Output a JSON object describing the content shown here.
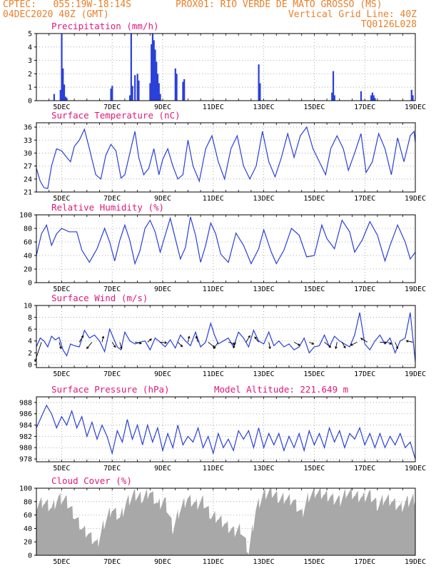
{
  "header": {
    "left1": "CPTEC:   055:19W-18:14S",
    "station": "PROX01: RIO VERDE DE MATO GROSSO (MS)",
    "left2": "04DEC2020 40Z (GMT)",
    "right2": "Vertical Grid Line: 40Z",
    "right3": "TQ0126L028"
  },
  "colors": {
    "header": "#e8802c",
    "title": "#e0187a",
    "line": "#2a40d8",
    "cloud": "#a8a8a8"
  },
  "chart_data": [
    {
      "type": "bar",
      "title": "Precipitation (mm/h)",
      "ylim": [
        0,
        5
      ],
      "yticks": [
        0,
        1,
        2,
        3,
        4,
        5
      ],
      "xticks": [
        "5DEC",
        "7DEC",
        "9DEC",
        "11DEC",
        "13DEC",
        "15DEC",
        "17DEC",
        "19DEC"
      ],
      "x": [
        4.7,
        4.95,
        5.0,
        5.05,
        5.1,
        5.15,
        5.2,
        6.95,
        7.0,
        7.7,
        7.75,
        7.8,
        7.9,
        8.0,
        8.05,
        8.5,
        8.55,
        8.6,
        8.65,
        8.7,
        8.75,
        8.8,
        8.85,
        8.9,
        9.5,
        9.55,
        9.8,
        9.85,
        12.8,
        12.85,
        15.7,
        15.75,
        15.8,
        16.85,
        17.25,
        17.3,
        17.35,
        17.4,
        18.85,
        18.9
      ],
      "values": [
        0.5,
        0.8,
        5.0,
        2.4,
        1.2,
        0.3,
        0.2,
        0.9,
        1.1,
        0.4,
        5.0,
        1.1,
        1.9,
        2.0,
        1.5,
        1.3,
        4.2,
        5.0,
        4.5,
        3.8,
        2.9,
        2.0,
        1.3,
        0.5,
        2.4,
        2.0,
        1.4,
        1.6,
        2.7,
        1.3,
        0.6,
        2.2,
        0.4,
        0.7,
        0.4,
        0.6,
        0.4,
        0.2,
        0.8,
        0.4
      ]
    },
    {
      "type": "line",
      "title": "Surface Temperature (nC)",
      "ylim": [
        21,
        37
      ],
      "yticks": [
        21,
        24,
        27,
        30,
        33,
        36
      ],
      "xticks": [
        "5DEC",
        "7DEC",
        "9DEC",
        "11DEC",
        "13DEC",
        "15DEC",
        "17DEC",
        "19DEC"
      ],
      "x": [
        4.0,
        4.15,
        4.3,
        4.45,
        4.6,
        4.8,
        5.0,
        5.2,
        5.35,
        5.5,
        5.7,
        5.9,
        6.1,
        6.35,
        6.55,
        6.75,
        6.95,
        7.15,
        7.35,
        7.5,
        7.7,
        7.9,
        8.05,
        8.25,
        8.45,
        8.65,
        8.85,
        9.0,
        9.2,
        9.4,
        9.6,
        9.8,
        10.0,
        10.2,
        10.45,
        10.7,
        10.95,
        11.2,
        11.45,
        11.7,
        11.95,
        12.2,
        12.45,
        12.7,
        12.95,
        13.2,
        13.45,
        13.7,
        13.95,
        14.2,
        14.45,
        14.7,
        14.95,
        15.2,
        15.45,
        15.65,
        15.9,
        16.15,
        16.35,
        16.6,
        16.85,
        17.05,
        17.3,
        17.55,
        17.8,
        18.05,
        18.3,
        18.55,
        18.8,
        18.95,
        19.0
      ],
      "values": [
        26.5,
        23.5,
        22.0,
        21.8,
        27.0,
        31.0,
        30.5,
        29.0,
        28.0,
        31.5,
        33.0,
        35.5,
        31.0,
        25.0,
        24.0,
        29.5,
        32.0,
        30.5,
        24.2,
        25.0,
        30.0,
        35.0,
        29.0,
        25.0,
        26.5,
        31.0,
        25.0,
        28.5,
        31.0,
        27.0,
        24.0,
        25.0,
        33.0,
        27.0,
        23.5,
        31.0,
        34.0,
        28.0,
        24.0,
        31.0,
        34.0,
        27.0,
        24.0,
        27.0,
        35.0,
        28.0,
        24.5,
        29.0,
        34.5,
        29.0,
        34.0,
        36.0,
        31.0,
        28.0,
        25.0,
        31.0,
        34.0,
        31.0,
        26.0,
        30.0,
        34.5,
        25.5,
        28.0,
        34.5,
        31.0,
        25.0,
        33.5,
        28.0,
        34.0,
        35.0,
        32.5
      ]
    },
    {
      "type": "line",
      "title": "Relative Humidity (%)",
      "ylim": [
        0,
        100
      ],
      "yticks": [
        0,
        20,
        40,
        60,
        80,
        100
      ],
      "xticks": [
        "5DEC",
        "7DEC",
        "9DEC",
        "11DEC",
        "13DEC",
        "15DEC",
        "17DEC",
        "19DEC"
      ],
      "x": [
        4.0,
        4.2,
        4.4,
        4.6,
        4.8,
        5.0,
        5.3,
        5.6,
        5.8,
        6.1,
        6.4,
        6.7,
        6.9,
        7.1,
        7.3,
        7.5,
        7.7,
        7.9,
        8.1,
        8.3,
        8.5,
        8.7,
        8.9,
        9.1,
        9.3,
        9.5,
        9.7,
        9.9,
        10.1,
        10.3,
        10.5,
        10.7,
        10.9,
        11.1,
        11.3,
        11.6,
        11.9,
        12.2,
        12.5,
        12.8,
        13.0,
        13.3,
        13.5,
        13.8,
        14.1,
        14.4,
        14.7,
        15.0,
        15.3,
        15.5,
        15.8,
        16.1,
        16.4,
        16.6,
        16.9,
        17.2,
        17.5,
        17.8,
        18.0,
        18.3,
        18.6,
        18.8,
        19.0
      ],
      "values": [
        40,
        72,
        85,
        55,
        72,
        80,
        75,
        75,
        48,
        30,
        50,
        80,
        60,
        32,
        62,
        85,
        62,
        28,
        47,
        80,
        92,
        75,
        45,
        70,
        95,
        65,
        35,
        52,
        97,
        70,
        30,
        55,
        88,
        72,
        42,
        30,
        73,
        55,
        28,
        50,
        78,
        45,
        28,
        48,
        80,
        70,
        38,
        40,
        85,
        65,
        50,
        92,
        75,
        45,
        63,
        90,
        70,
        32,
        55,
        85,
        60,
        35,
        45
      ]
    },
    {
      "type": "line",
      "title": "Surface Wind (m/s)",
      "ylim": [
        -0.5,
        10
      ],
      "yticks": [
        0,
        2,
        4,
        6,
        8,
        10
      ],
      "xticks": [
        "5DEC",
        "7DEC",
        "9DEC",
        "11DEC",
        "13DEC",
        "15DEC",
        "17DEC",
        "19DEC"
      ],
      "x": [
        4.0,
        4.15,
        4.3,
        4.45,
        4.6,
        4.75,
        4.9,
        5.05,
        5.2,
        5.35,
        5.5,
        5.7,
        5.9,
        6.1,
        6.3,
        6.5,
        6.7,
        6.9,
        7.05,
        7.2,
        7.35,
        7.5,
        7.7,
        7.9,
        8.1,
        8.3,
        8.5,
        8.7,
        8.9,
        9.1,
        9.3,
        9.5,
        9.7,
        9.9,
        10.1,
        10.3,
        10.5,
        10.7,
        10.9,
        11.05,
        11.2,
        11.4,
        11.6,
        11.8,
        12.0,
        12.2,
        12.4,
        12.6,
        12.8,
        13.0,
        13.2,
        13.4,
        13.6,
        13.8,
        14.0,
        14.2,
        14.4,
        14.6,
        14.8,
        15.0,
        15.2,
        15.4,
        15.6,
        15.8,
        16.0,
        16.2,
        16.4,
        16.6,
        16.8,
        17.0,
        17.2,
        17.4,
        17.6,
        17.8,
        18.0,
        18.2,
        18.4,
        18.6,
        18.8,
        19.0
      ],
      "values": [
        3.0,
        4.5,
        4.0,
        3.0,
        4.8,
        4.2,
        4.6,
        2.5,
        1.5,
        3.5,
        3.2,
        3.0,
        5.8,
        4.5,
        5.0,
        4.0,
        2.2,
        6.0,
        4.5,
        3.0,
        2.5,
        5.5,
        4.0,
        3.5,
        3.8,
        4.0,
        2.5,
        4.5,
        3.8,
        3.0,
        4.2,
        2.8,
        5.0,
        4.0,
        3.2,
        5.5,
        3.0,
        3.8,
        7.0,
        5.0,
        3.5,
        4.0,
        4.5,
        3.0,
        5.5,
        4.5,
        3.0,
        5.8,
        4.0,
        3.5,
        5.5,
        3.2,
        4.0,
        3.0,
        3.5,
        2.5,
        3.0,
        4.5,
        2.0,
        3.0,
        3.2,
        5.0,
        3.0,
        4.8,
        4.0,
        3.5,
        3.0,
        5.0,
        8.8,
        3.5,
        2.5,
        4.0,
        5.0,
        3.5,
        4.5,
        2.0,
        4.0,
        4.5,
        8.8,
        0.5
      ]
    },
    {
      "type": "line",
      "title": "Surface Pressure (hPa)",
      "annotation": "Model Altitude: 221.649 m",
      "ylim": [
        977.5,
        989
      ],
      "yticks": [
        978,
        980,
        982,
        984,
        986,
        988
      ],
      "xticks": [
        "5DEC",
        "7DEC",
        "9DEC",
        "11DEC",
        "13DEC",
        "15DEC",
        "17DEC",
        "19DEC"
      ],
      "x": [
        4.0,
        4.2,
        4.4,
        4.6,
        4.8,
        5.0,
        5.2,
        5.4,
        5.6,
        5.8,
        6.0,
        6.2,
        6.4,
        6.6,
        6.8,
        7.0,
        7.2,
        7.4,
        7.6,
        7.8,
        8.0,
        8.2,
        8.4,
        8.6,
        8.8,
        9.0,
        9.2,
        9.4,
        9.6,
        9.8,
        10.0,
        10.2,
        10.4,
        10.6,
        10.8,
        11.0,
        11.2,
        11.4,
        11.6,
        11.8,
        12.0,
        12.2,
        12.4,
        12.6,
        12.8,
        13.0,
        13.2,
        13.4,
        13.6,
        13.8,
        14.0,
        14.2,
        14.4,
        14.6,
        14.8,
        15.0,
        15.2,
        15.4,
        15.6,
        15.8,
        16.0,
        16.2,
        16.4,
        16.6,
        16.8,
        17.0,
        17.2,
        17.4,
        17.6,
        17.8,
        18.0,
        18.2,
        18.4,
        18.6,
        18.8,
        19.0
      ],
      "values": [
        983.5,
        985.5,
        987.5,
        986.0,
        983.5,
        985.5,
        984.0,
        986.5,
        983.5,
        985.5,
        982.0,
        984.5,
        981.5,
        984.0,
        982.0,
        979.0,
        983.0,
        981.0,
        985.0,
        981.5,
        984.0,
        980.5,
        984.0,
        981.0,
        983.5,
        979.5,
        982.5,
        980.0,
        984.0,
        980.5,
        982.0,
        981.0,
        983.5,
        980.0,
        982.0,
        979.0,
        982.5,
        980.0,
        981.5,
        979.5,
        983.0,
        981.5,
        983.0,
        980.0,
        983.5,
        980.0,
        982.5,
        980.5,
        982.5,
        979.5,
        982.0,
        980.0,
        982.5,
        979.5,
        983.0,
        980.5,
        982.5,
        980.0,
        983.5,
        981.0,
        983.0,
        980.0,
        982.5,
        981.5,
        983.5,
        980.5,
        982.5,
        980.0,
        982.5,
        980.0,
        982.0,
        980.5,
        982.5,
        980.0,
        981.0,
        978.0
      ]
    },
    {
      "type": "area",
      "title": "Cloud Cover (%)",
      "ylim": [
        0,
        100
      ],
      "yticks": [
        0,
        20,
        40,
        60,
        80,
        100
      ],
      "xticks": [
        "5DEC",
        "7DEC",
        "9DEC",
        "11DEC",
        "13DEC",
        "15DEC",
        "17DEC",
        "19DEC"
      ],
      "x": [
        4.0,
        4.3,
        4.6,
        4.9,
        5.2,
        5.5,
        5.8,
        6.1,
        6.4,
        6.7,
        7.0,
        7.3,
        7.6,
        7.9,
        8.2,
        8.5,
        8.8,
        9.1,
        9.4,
        9.7,
        10.0,
        10.3,
        10.6,
        10.9,
        11.2,
        11.5,
        11.8,
        12.1,
        12.4,
        12.7,
        13.0,
        13.3,
        13.6,
        13.9,
        14.2,
        14.5,
        14.8,
        15.1,
        15.4,
        15.7,
        16.0,
        16.3,
        16.6,
        16.9,
        17.2,
        17.5,
        17.8,
        18.1,
        18.4,
        18.7,
        19.0
      ],
      "values": [
        75,
        80,
        70,
        85,
        80,
        60,
        40,
        30,
        15,
        50,
        70,
        55,
        80,
        90,
        85,
        95,
        75,
        80,
        40,
        70,
        85,
        75,
        80,
        60,
        55,
        45,
        35,
        40,
        5,
        70,
        90,
        95,
        85,
        85,
        80,
        60,
        90,
        95,
        90,
        85,
        80,
        95,
        90,
        85,
        90,
        75,
        85,
        80,
        70,
        80,
        85
      ]
    }
  ]
}
